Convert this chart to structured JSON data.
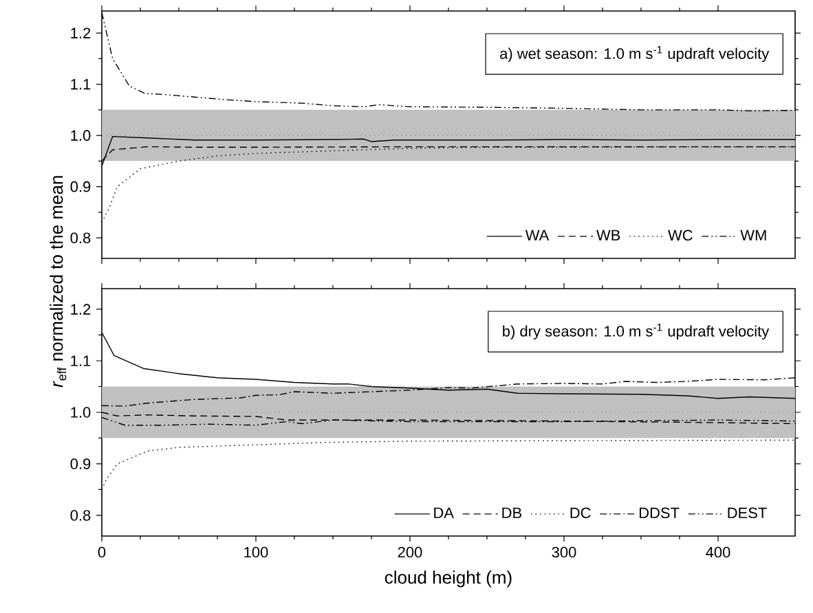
{
  "chart_data": [
    {
      "type": "line",
      "tick_labels": "y",
      "xlim": [
        0,
        450
      ],
      "ylim": [
        0.76,
        1.243
      ],
      "xticks": [
        0,
        100,
        200,
        300,
        400
      ],
      "yticks": [
        0.8,
        0.9,
        {
          "value": 1.0,
          "label": "1.0"
        },
        1.1,
        1.2
      ],
      "legend": "bottom right",
      "annotations": [
        "a) wet season: 1.0 m s$^{-1}$ updraft velocity"
      ],
      "bands": [
        {
          "axis": "y",
          "from": 0.95,
          "to": 1.05,
          "color": "#c0c0c0"
        }
      ],
      "ref_lines": [
        {
          "axis": "y",
          "value": 1.0,
          "color": "#999999",
          "line_style": "dotted"
        }
      ],
      "series": [
        {
          "name": "WA",
          "color": "#000000",
          "line_style": "solid",
          "x": [
            0,
            7,
            30,
            60,
            100,
            150,
            170,
            175,
            190,
            250,
            300,
            350,
            400,
            450
          ],
          "values": [
            0.94,
            0.998,
            0.995,
            0.991,
            0.991,
            0.992,
            0.993,
            0.988,
            0.991,
            0.991,
            0.992,
            0.991,
            0.992,
            0.992
          ]
        },
        {
          "name": "WB",
          "color": "#000000",
          "line_style": "dashed",
          "x": [
            0,
            7,
            30,
            60,
            100,
            200,
            300,
            400,
            450
          ],
          "values": [
            0.95,
            0.972,
            0.978,
            0.977,
            0.977,
            0.978,
            0.978,
            0.978,
            0.978
          ]
        },
        {
          "name": "WC",
          "color": "#000000",
          "line_style": "dotted",
          "x": [
            0,
            5,
            10,
            25,
            50,
            75,
            100,
            150,
            200,
            250,
            300,
            400,
            450
          ],
          "values": [
            0.83,
            0.86,
            0.9,
            0.935,
            0.95,
            0.96,
            0.965,
            0.97,
            0.975,
            0.977,
            0.977,
            0.978,
            0.978
          ]
        },
        {
          "name": "WM",
          "color": "#000000",
          "line_style": "dashdotdot",
          "x": [
            0,
            7,
            18,
            28,
            40,
            60,
            80,
            100,
            130,
            150,
            170,
            180,
            200,
            250,
            300,
            350,
            400,
            420,
            450
          ],
          "values": [
            1.24,
            1.15,
            1.096,
            1.082,
            1.08,
            1.075,
            1.07,
            1.066,
            1.063,
            1.058,
            1.056,
            1.06,
            1.056,
            1.055,
            1.053,
            1.05,
            1.05,
            1.048,
            1.049
          ]
        }
      ]
    },
    {
      "type": "line",
      "xlim": [
        0,
        450
      ],
      "ylim": [
        0.76,
        1.24
      ],
      "xticks": [
        0,
        100,
        200,
        300,
        400
      ],
      "yticks": [
        0.8,
        0.9,
        {
          "value": 1.0,
          "label": "1.0"
        },
        1.1,
        1.2
      ],
      "xlabel": "cloud height (m)",
      "ylabel": "*r*$_{eff}$ normalized to the mean",
      "legend": "bottom right",
      "annotations": [
        "b) dry season: 1.0 m s$^{-1}$ updraft velocity"
      ],
      "bands": [
        {
          "axis": "y",
          "from": 0.95,
          "to": 1.05,
          "color": "#c0c0c0"
        }
      ],
      "ref_lines": [
        {
          "axis": "y",
          "value": 1.0,
          "color": "#999999",
          "line_style": "dotted"
        }
      ],
      "series": [
        {
          "name": "DA",
          "color": "#000000",
          "line_style": "solid",
          "x": [
            0,
            8,
            27,
            50,
            75,
            100,
            125,
            150,
            160,
            175,
            200,
            225,
            250,
            270,
            300,
            350,
            380,
            400,
            420,
            450
          ],
          "values": [
            1.155,
            1.11,
            1.085,
            1.075,
            1.067,
            1.064,
            1.058,
            1.055,
            1.055,
            1.05,
            1.047,
            1.043,
            1.045,
            1.037,
            1.036,
            1.035,
            1.032,
            1.027,
            1.03,
            1.027
          ]
        },
        {
          "name": "DB",
          "color": "#000000",
          "line_style": "dashed",
          "x": [
            0,
            10,
            30,
            60,
            100,
            120,
            200,
            300,
            400,
            450
          ],
          "values": [
            1.0,
            0.993,
            0.995,
            0.993,
            0.992,
            0.985,
            0.985,
            0.983,
            0.98,
            0.978
          ]
        },
        {
          "name": "DC",
          "color": "#000000",
          "line_style": "dotted",
          "x": [
            0,
            3,
            10,
            30,
            50,
            100,
            150,
            200,
            300,
            450
          ],
          "values": [
            0.85,
            0.87,
            0.9,
            0.925,
            0.932,
            0.937,
            0.942,
            0.944,
            0.945,
            0.946
          ]
        },
        {
          "name": "DDST",
          "color": "#000000",
          "line_style": "dashdot",
          "x": [
            0,
            15,
            30,
            60,
            90,
            100,
            115,
            125,
            150,
            175,
            200,
            225,
            240,
            270,
            300,
            325,
            340,
            360,
            380,
            400,
            430,
            450
          ],
          "values": [
            1.013,
            1.012,
            1.018,
            1.025,
            1.028,
            1.033,
            1.034,
            1.04,
            1.037,
            1.04,
            1.043,
            1.048,
            1.047,
            1.055,
            1.056,
            1.055,
            1.06,
            1.058,
            1.06,
            1.064,
            1.063,
            1.067
          ]
        },
        {
          "name": "DEST",
          "color": "#000000",
          "line_style": "dashdotdot",
          "x": [
            0,
            15,
            40,
            70,
            100,
            120,
            130,
            150,
            200,
            300,
            400,
            450
          ],
          "values": [
            0.99,
            0.975,
            0.975,
            0.977,
            0.975,
            0.982,
            0.978,
            0.985,
            0.982,
            0.982,
            0.985,
            0.983
          ]
        }
      ]
    }
  ]
}
